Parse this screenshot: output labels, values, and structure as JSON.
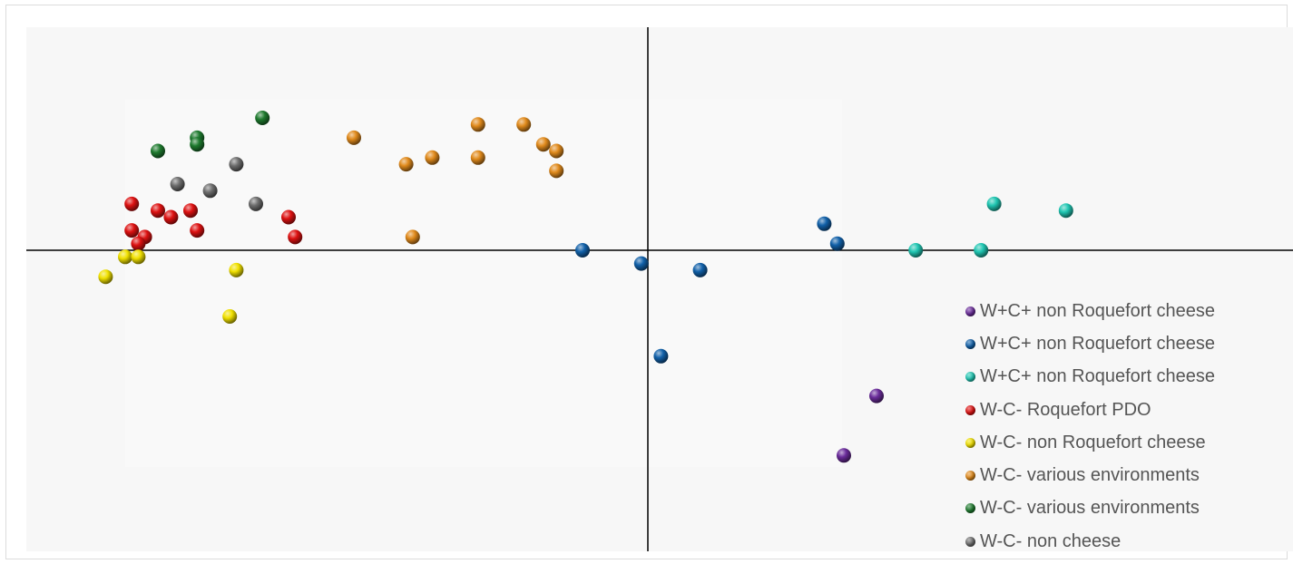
{
  "chart_data": {
    "type": "scatter",
    "title": "",
    "xlabel": "",
    "ylabel": "",
    "grid": false,
    "legend_position": "bottom-right",
    "series": [
      {
        "name": "W+C+ non Roquefort cheese",
        "color": "#6a2c9a",
        "points": [
          [
            3.5,
            -2.2
          ],
          [
            3.0,
            -3.1
          ]
        ]
      },
      {
        "name": "W+C+ non Roquefort cheese",
        "color": "#1160a8",
        "points": [
          [
            -1.0,
            0.0
          ],
          [
            -0.1,
            -0.2
          ],
          [
            0.8,
            -0.3
          ],
          [
            0.2,
            -1.6
          ],
          [
            2.7,
            0.4
          ],
          [
            2.9,
            0.1
          ]
        ]
      },
      {
        "name": "W+C+ non Roquefort cheese",
        "color": "#20c6b2",
        "points": [
          [
            4.1,
            0.0
          ],
          [
            5.1,
            0.0
          ],
          [
            5.3,
            0.7
          ],
          [
            6.4,
            0.6
          ]
        ]
      },
      {
        "name": "W-C- Roquefort PDO",
        "color": "#dd1111",
        "points": [
          [
            -7.9,
            0.7
          ],
          [
            -7.5,
            0.6
          ],
          [
            -7.3,
            0.5
          ],
          [
            -7.0,
            0.6
          ],
          [
            -7.9,
            0.3
          ],
          [
            -7.7,
            0.2
          ],
          [
            -7.8,
            0.1
          ],
          [
            -6.9,
            0.3
          ],
          [
            -5.5,
            0.5
          ],
          [
            -5.4,
            0.2
          ]
        ]
      },
      {
        "name": "W-C- non Roquefort cheese",
        "color": "#f0e000",
        "points": [
          [
            -8.3,
            -0.4
          ],
          [
            -8.0,
            -0.1
          ],
          [
            -7.8,
            -0.1
          ],
          [
            -6.3,
            -0.3
          ],
          [
            -6.4,
            -1.0
          ]
        ]
      },
      {
        "name": "W-C- various environments",
        "color": "#e08a1c",
        "points": [
          [
            -4.5,
            1.7
          ],
          [
            -3.7,
            1.3
          ],
          [
            -3.3,
            1.4
          ],
          [
            -2.6,
            1.9
          ],
          [
            -2.6,
            1.4
          ],
          [
            -1.9,
            1.9
          ],
          [
            -1.6,
            1.6
          ],
          [
            -1.4,
            1.5
          ],
          [
            -1.4,
            1.2
          ],
          [
            -3.6,
            0.2
          ]
        ]
      },
      {
        "name": "W-C- various environments",
        "color": "#1e7a2e",
        "points": [
          [
            -7.5,
            1.5
          ],
          [
            -6.9,
            1.7
          ],
          [
            -6.9,
            1.6
          ],
          [
            -5.9,
            2.0
          ]
        ]
      },
      {
        "name": "W-C- non cheese",
        "color": "#6e6e6e",
        "points": [
          [
            -7.2,
            1.0
          ],
          [
            -6.7,
            0.9
          ],
          [
            -6.3,
            1.3
          ],
          [
            -6.0,
            0.7
          ]
        ]
      }
    ]
  }
}
